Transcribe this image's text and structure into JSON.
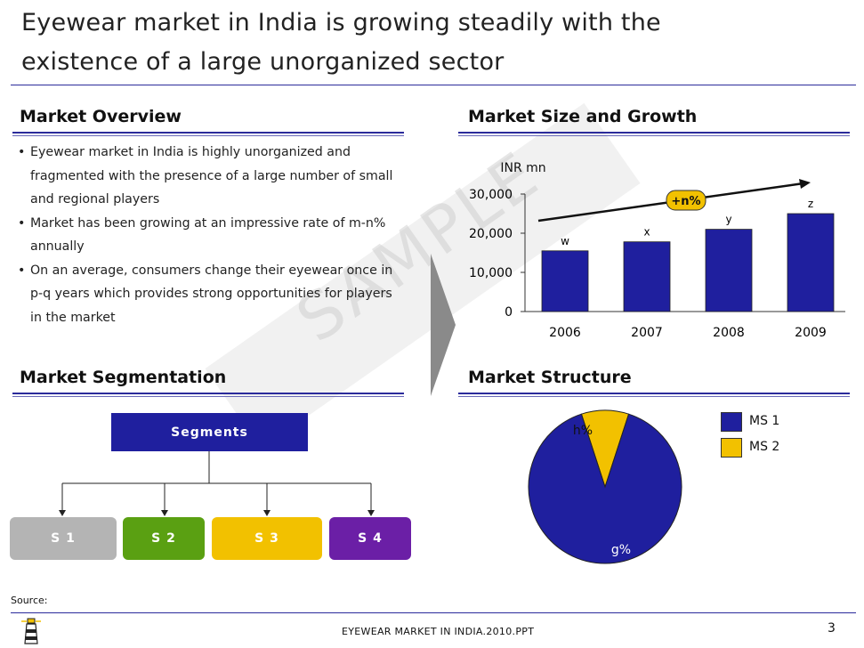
{
  "title": {
    "line1": "Eyewear market in India is growing steadily with the",
    "line2": "existence of a large unorganized sector"
  },
  "overview": {
    "heading": "Market Overview",
    "bullets": [
      "Eyewear market in India is highly unorganized and fragmented with the presence of a large number of small and regional players",
      "Market has been growing at an impressive rate of m-n% annually",
      "On an average, consumers change their eyewear once in p-q years which provides strong opportunities for players in the market"
    ]
  },
  "size_growth": {
    "heading": "Market Size and Growth",
    "unit_label": "INR mn",
    "cagr_label": "+n%"
  },
  "chart_data": [
    {
      "type": "bar",
      "categories": [
        "2006",
        "2007",
        "2008",
        "2009"
      ],
      "values": [
        15500,
        17800,
        21000,
        25000
      ],
      "data_labels": [
        "w",
        "x",
        "y",
        "z"
      ],
      "ylim": [
        0,
        30000
      ],
      "yticks": [
        "0",
        "10,000",
        "20,000",
        "30,000"
      ],
      "ylabel": "INR mn",
      "annotation": "+n%",
      "bar_color": "#1f1f9e",
      "grid": false
    },
    {
      "type": "pie",
      "labels": [
        "MS 1",
        "MS 2"
      ],
      "values": [
        90,
        10
      ],
      "data_labels": [
        "g%",
        "h%"
      ],
      "colors": [
        "#1f1f9e",
        "#f2c100"
      ],
      "legend_position": "top-right"
    }
  ],
  "segmentation": {
    "heading": "Market Segmentation",
    "root": "Segments",
    "segments": [
      {
        "label": "S 1",
        "color": "#b4b4b4"
      },
      {
        "label": "S 2",
        "color": "#5aa012"
      },
      {
        "label": "S 3",
        "color": "#f2c100"
      },
      {
        "label": "S 4",
        "color": "#6b1fa6"
      }
    ]
  },
  "structure": {
    "heading": "Market Structure",
    "legend": [
      "MS 1",
      "MS 2"
    ]
  },
  "watermark": "SAMPLE",
  "footer": {
    "source_label": "Source:",
    "file_name": "EYEWEAR  MARKET IN INDIA.2010.PPT",
    "page_number": "3"
  },
  "colors": {
    "navy": "#1f1f9e",
    "rule": "#2b2b9b",
    "gold": "#f2c100"
  }
}
